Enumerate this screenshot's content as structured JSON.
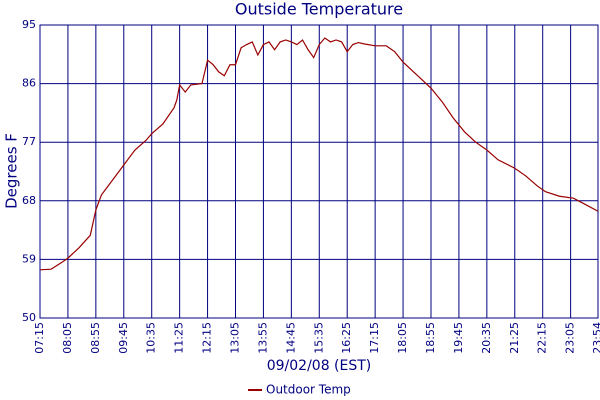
{
  "chart_data": {
    "type": "line",
    "title": "Outside Temperature",
    "x_label": "09/02/08 (EST)",
    "y_label": "Degrees F",
    "x": [
      "07:15",
      "07:35",
      "07:55",
      "08:05",
      "08:25",
      "08:45",
      "08:55",
      "09:05",
      "09:25",
      "09:45",
      "10:05",
      "10:25",
      "10:35",
      "10:55",
      "11:15",
      "11:20",
      "11:25",
      "11:35",
      "11:45",
      "12:05",
      "12:15",
      "12:25",
      "12:35",
      "12:45",
      "12:55",
      "13:05",
      "13:15",
      "13:25",
      "13:35",
      "13:45",
      "13:55",
      "14:05",
      "14:15",
      "14:25",
      "14:35",
      "14:45",
      "14:55",
      "15:05",
      "15:15",
      "15:25",
      "15:35",
      "15:45",
      "15:55",
      "16:05",
      "16:15",
      "16:25",
      "16:35",
      "16:45",
      "16:55",
      "17:15",
      "17:35",
      "17:50",
      "18:05",
      "18:20",
      "18:35",
      "18:55",
      "19:15",
      "19:35",
      "19:55",
      "20:15",
      "20:35",
      "20:55",
      "21:25",
      "21:45",
      "22:05",
      "22:20",
      "22:45",
      "23:10",
      "23:30",
      "23:54"
    ],
    "series": [
      {
        "name": "Outdoor Temp",
        "color": "#990000",
        "values": [
          57.4,
          57.5,
          58.6,
          59.2,
          60.8,
          62.7,
          66.6,
          68.9,
          71.2,
          73.5,
          75.8,
          77.3,
          78.3,
          79.8,
          82.3,
          83.5,
          85.8,
          84.7,
          85.8,
          86,
          89.6,
          88.9,
          87.8,
          87.2,
          88.9,
          88.9,
          91.5,
          92,
          92.4,
          90.4,
          92,
          92.4,
          91.2,
          92.4,
          92.7,
          92.4,
          92,
          92.7,
          91.2,
          90,
          92,
          93,
          92.4,
          92.7,
          92.4,
          90.9,
          92,
          92.3,
          92.1,
          91.8,
          91.8,
          90.9,
          89.3,
          88.1,
          86.9,
          85.3,
          83.2,
          80.7,
          78.6,
          77,
          75.8,
          74.3,
          73,
          71.8,
          70.3,
          69.4,
          68.7,
          68.4,
          67.5,
          66.4
        ]
      }
    ],
    "xticks": [
      "07:15",
      "08:05",
      "08:55",
      "09:45",
      "10:35",
      "11:25",
      "12:15",
      "13:05",
      "13:55",
      "14:45",
      "15:35",
      "16:25",
      "17:15",
      "18:05",
      "18:55",
      "19:45",
      "20:35",
      "21:25",
      "22:15",
      "23:05",
      "23:54"
    ],
    "ylim": [
      50,
      95
    ],
    "yticks": [
      50,
      59,
      68,
      77,
      86,
      95
    ],
    "grid": true,
    "legend": "bottom"
  }
}
